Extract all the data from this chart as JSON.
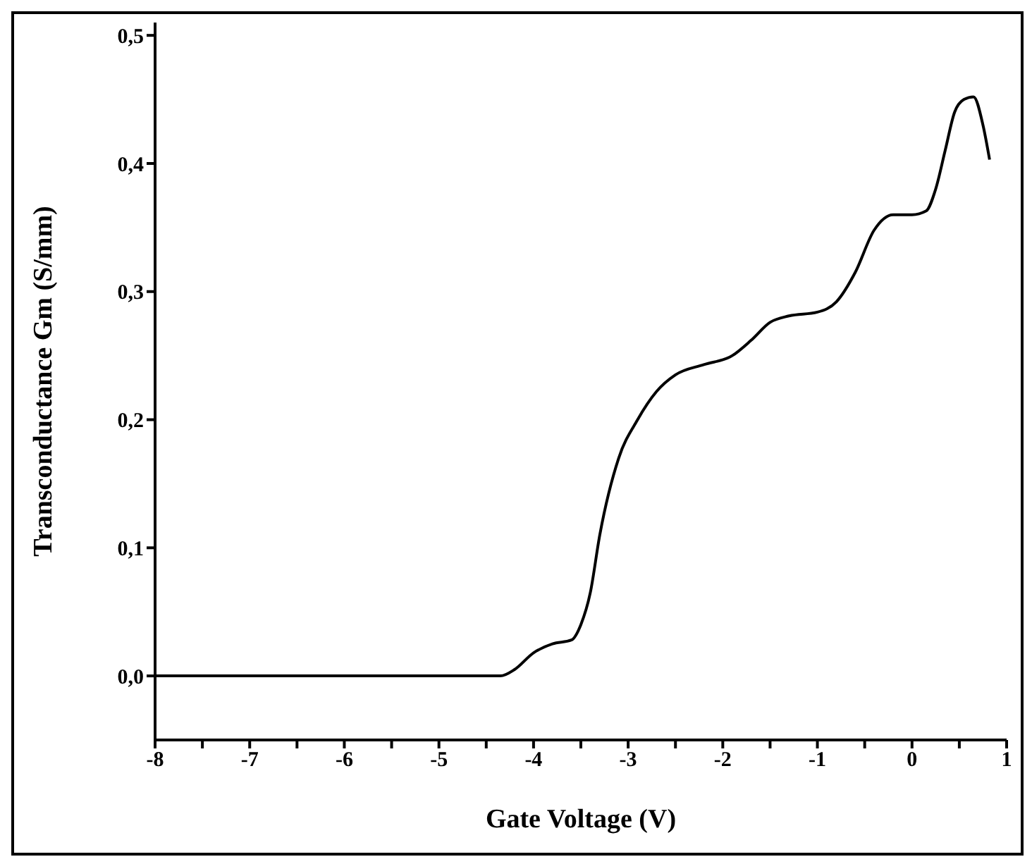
{
  "chart_data": {
    "type": "line",
    "xlabel": "Gate Voltage (V)",
    "ylabel": "Transconductance Gm (S/mm)",
    "xlim": [
      -8,
      1
    ],
    "ylim": [
      -0.05,
      0.51
    ],
    "xticks": [
      -8,
      {
        "value": -7.5,
        "label": null
      },
      -7,
      {
        "value": -6.5,
        "label": null
      },
      -6,
      {
        "value": -5.5,
        "label": null
      },
      -5,
      {
        "value": -4.5,
        "label": null
      },
      -4,
      {
        "value": -3.5,
        "label": null
      },
      -3,
      {
        "value": -2.5,
        "label": null
      },
      -2,
      {
        "value": -1.5,
        "label": null
      },
      -1,
      {
        "value": -0.5,
        "label": null
      },
      0,
      {
        "value": 0.5,
        "label": null
      },
      1
    ],
    "yticks": [
      {
        "value": 0,
        "label": "0,0"
      },
      {
        "value": 0.1,
        "label": "0,1"
      },
      {
        "value": 0.2,
        "label": "0,2"
      },
      {
        "value": 0.3,
        "label": "0,3"
      },
      {
        "value": 0.4,
        "label": "0,4"
      },
      {
        "value": 0.5,
        "label": "0,5"
      }
    ],
    "x": [
      -8,
      -6,
      -5,
      -4.35,
      -4.2,
      -4.0,
      -3.8,
      -3.6,
      -3.5,
      -3.4,
      -3.3,
      -3.1,
      -2.9,
      -2.7,
      -2.5,
      -2.2,
      -1.9,
      -1.7,
      -1.5,
      -1.3,
      -1.0,
      -0.8,
      -0.6,
      -0.4,
      -0.2,
      0,
      0.15,
      0.25,
      0.35,
      0.45,
      0.55,
      0.65,
      0.75,
      0.82
    ],
    "series": [
      {
        "color": "#000000",
        "values": [
          0,
          0,
          0,
          0,
          0.005,
          0.018,
          0.025,
          0.028,
          0.04,
          0.065,
          0.11,
          0.17,
          0.2,
          0.222,
          0.235,
          0.243,
          0.25,
          0.262,
          0.276,
          0.281,
          0.284,
          0.292,
          0.315,
          0.348,
          0.36,
          0.36,
          0.363,
          0.38,
          0.41,
          0.44,
          0.45,
          0.452,
          0.43,
          0.403
        ]
      }
    ],
    "marker": "none",
    "line_style": "solid"
  }
}
